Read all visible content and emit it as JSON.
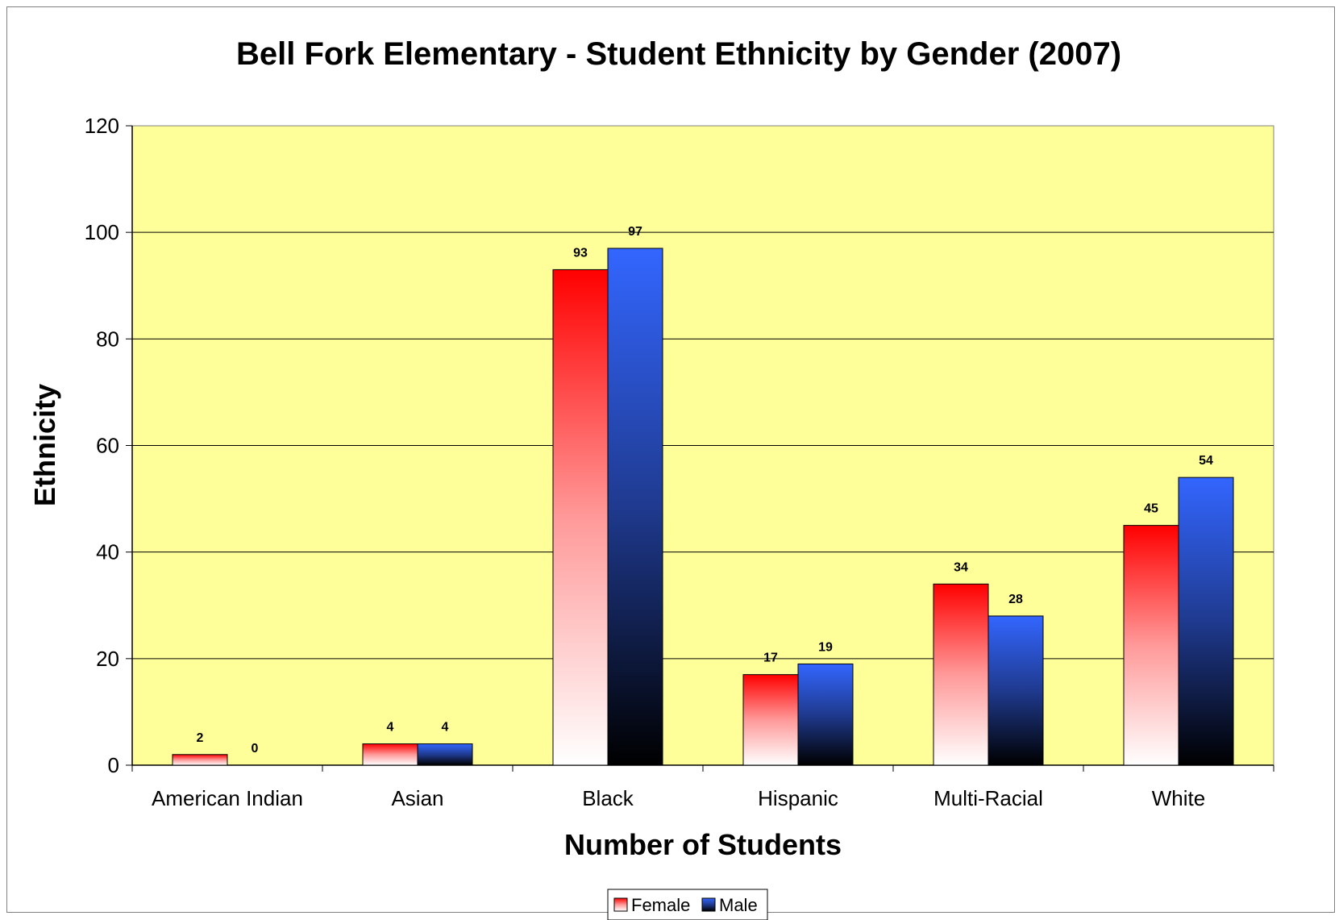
{
  "chart_data": {
    "type": "bar",
    "title": "Bell Fork Elementary - Student Ethnicity by Gender (2007)",
    "xlabel": "Number of Students",
    "ylabel": "Ethnicity",
    "categories": [
      "American Indian",
      "Asian",
      "Black",
      "Hispanic",
      "Multi-Racial",
      "White"
    ],
    "series": [
      {
        "name": "Female",
        "values": [
          2,
          4,
          93,
          17,
          34,
          45
        ],
        "color": "#ff0000"
      },
      {
        "name": "Male",
        "values": [
          0,
          4,
          97,
          19,
          28,
          54
        ],
        "color": "#3366ff"
      }
    ],
    "ylim": [
      0,
      120
    ],
    "yticks": [
      0,
      20,
      40,
      60,
      80,
      100,
      120
    ],
    "grid": true,
    "legend": "bottom-center",
    "plot_background": "#ffff99"
  }
}
